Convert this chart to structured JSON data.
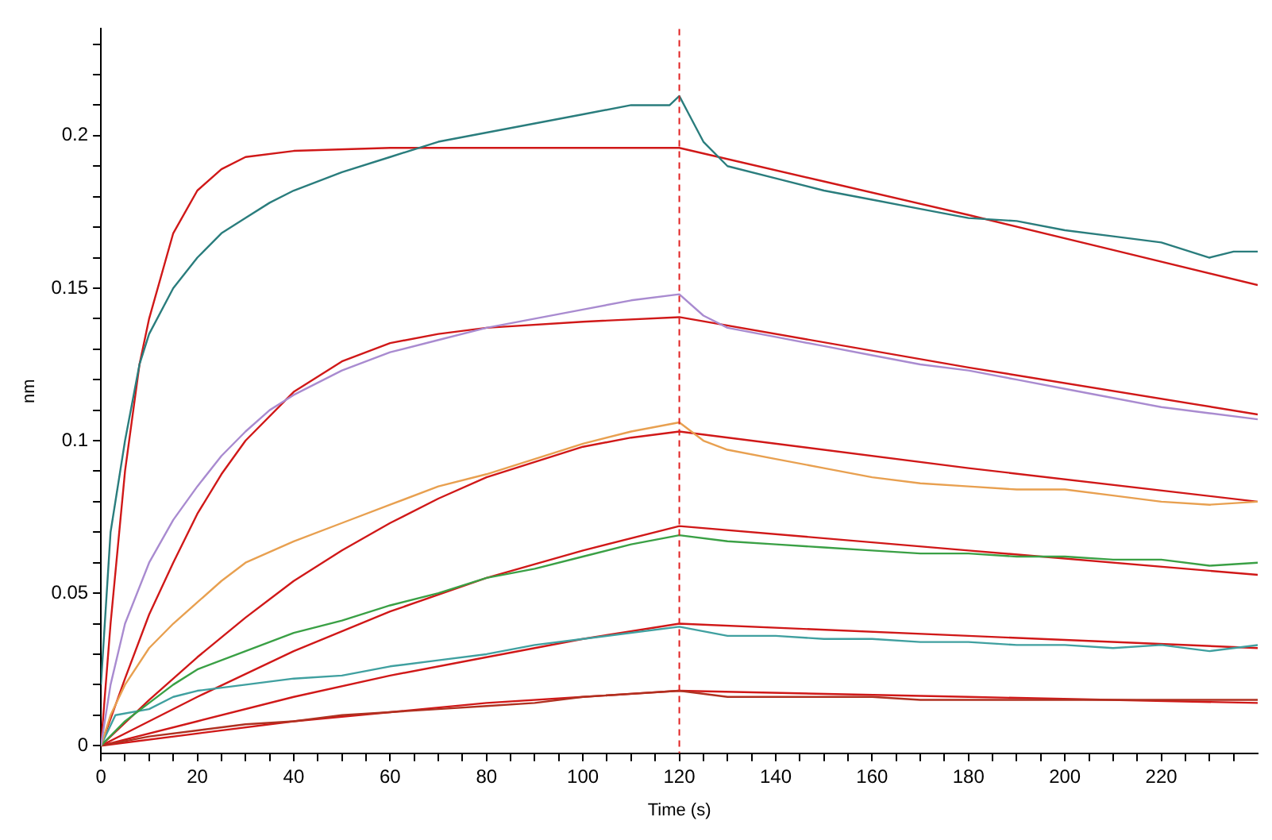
{
  "chart_data": {
    "type": "line",
    "xlabel": "Time (s)",
    "ylabel": "nm",
    "xlim": [
      0,
      240
    ],
    "ylim": [
      -0.0025,
      0.235
    ],
    "xticks": [
      0,
      {
        "value": 5,
        "label": null
      },
      {
        "value": 10,
        "label": null
      },
      {
        "value": 15,
        "label": null
      },
      20,
      {
        "value": 25,
        "label": null
      },
      {
        "value": 30,
        "label": null
      },
      {
        "value": 35,
        "label": null
      },
      40,
      {
        "value": 45,
        "label": null
      },
      {
        "value": 50,
        "label": null
      },
      {
        "value": 55,
        "label": null
      },
      60,
      {
        "value": 65,
        "label": null
      },
      {
        "value": 70,
        "label": null
      },
      {
        "value": 75,
        "label": null
      },
      80,
      {
        "value": 85,
        "label": null
      },
      {
        "value": 90,
        "label": null
      },
      {
        "value": 95,
        "label": null
      },
      100,
      {
        "value": 105,
        "label": null
      },
      {
        "value": 110,
        "label": null
      },
      {
        "value": 115,
        "label": null
      },
      120,
      {
        "value": 125,
        "label": null
      },
      {
        "value": 130,
        "label": null
      },
      {
        "value": 135,
        "label": null
      },
      140,
      {
        "value": 145,
        "label": null
      },
      {
        "value": 150,
        "label": null
      },
      {
        "value": 155,
        "label": null
      },
      160,
      {
        "value": 165,
        "label": null
      },
      {
        "value": 170,
        "label": null
      },
      {
        "value": 175,
        "label": null
      },
      180,
      {
        "value": 185,
        "label": null
      },
      {
        "value": 190,
        "label": null
      },
      {
        "value": 195,
        "label": null
      },
      200,
      {
        "value": 205,
        "label": null
      },
      {
        "value": 210,
        "label": null
      },
      {
        "value": 215,
        "label": null
      },
      220,
      {
        "value": 225,
        "label": null
      },
      {
        "value": 230,
        "label": null
      },
      {
        "value": 235,
        "label": null
      }
    ],
    "yticks": [
      0,
      {
        "value": 0.01,
        "label": null
      },
      {
        "value": 0.02,
        "label": null
      },
      {
        "value": 0.03,
        "label": null
      },
      {
        "value": 0.04,
        "label": null
      },
      0.05,
      {
        "value": 0.06,
        "label": null
      },
      {
        "value": 0.07,
        "label": null
      },
      {
        "value": 0.08,
        "label": null
      },
      {
        "value": 0.09,
        "label": null
      },
      0.1,
      {
        "value": 0.11,
        "label": null
      },
      {
        "value": 0.12,
        "label": null
      },
      {
        "value": 0.13,
        "label": null
      },
      {
        "value": 0.14,
        "label": null
      },
      0.15,
      {
        "value": 0.16,
        "label": null
      },
      {
        "value": 0.17,
        "label": null
      },
      {
        "value": 0.18,
        "label": null
      },
      {
        "value": 0.19,
        "label": null
      },
      0.2,
      {
        "value": 0.21,
        "label": null
      },
      {
        "value": 0.22,
        "label": null
      },
      {
        "value": 0.23,
        "label": null
      }
    ],
    "grid": false,
    "legend": false,
    "marker": "none",
    "line_style": "solid",
    "ref_lines": [
      {
        "axis": "x",
        "value": 120,
        "color": "#e02020",
        "line_style": "dashed"
      }
    ],
    "series": [
      {
        "color": "#2a7d7d",
        "x": [
          0,
          2,
          5,
          8,
          10,
          15,
          20,
          25,
          30,
          35,
          40,
          50,
          60,
          70,
          80,
          90,
          100,
          110,
          118,
          120,
          122,
          125,
          130,
          140,
          150,
          160,
          170,
          180,
          190,
          200,
          210,
          220,
          230,
          235,
          240
        ],
        "values": [
          0.02,
          0.07,
          0.1,
          0.125,
          0.135,
          0.15,
          0.16,
          0.168,
          0.173,
          0.178,
          0.182,
          0.188,
          0.193,
          0.198,
          0.201,
          0.204,
          0.207,
          0.21,
          0.21,
          0.213,
          0.207,
          0.198,
          0.19,
          0.186,
          0.182,
          0.179,
          0.176,
          0.173,
          0.172,
          0.169,
          0.167,
          0.165,
          0.16,
          0.162,
          0.162
        ]
      },
      {
        "color": "#a98bd0",
        "x": [
          0,
          2,
          5,
          10,
          15,
          20,
          25,
          30,
          35,
          40,
          50,
          60,
          70,
          80,
          90,
          100,
          110,
          120,
          125,
          130,
          140,
          150,
          160,
          170,
          180,
          190,
          200,
          210,
          220,
          230,
          240
        ],
        "values": [
          0,
          0.02,
          0.04,
          0.06,
          0.074,
          0.085,
          0.095,
          0.103,
          0.11,
          0.115,
          0.123,
          0.129,
          0.133,
          0.137,
          0.14,
          0.143,
          0.146,
          0.148,
          0.141,
          0.137,
          0.134,
          0.131,
          0.128,
          0.125,
          0.123,
          0.12,
          0.117,
          0.114,
          0.111,
          0.109,
          0.107
        ]
      },
      {
        "color": "#e8a050",
        "x": [
          0,
          2,
          5,
          10,
          15,
          20,
          25,
          30,
          40,
          50,
          60,
          70,
          80,
          90,
          100,
          110,
          120,
          125,
          130,
          140,
          150,
          160,
          170,
          180,
          190,
          200,
          210,
          220,
          230,
          240
        ],
        "values": [
          0,
          0.01,
          0.02,
          0.032,
          0.04,
          0.047,
          0.054,
          0.06,
          0.067,
          0.073,
          0.079,
          0.085,
          0.089,
          0.094,
          0.099,
          0.103,
          0.106,
          0.1,
          0.097,
          0.094,
          0.091,
          0.088,
          0.086,
          0.085,
          0.084,
          0.084,
          0.082,
          0.08,
          0.079,
          0.08
        ]
      },
      {
        "color": "#3aa045",
        "x": [
          0,
          5,
          10,
          15,
          20,
          30,
          40,
          50,
          60,
          70,
          80,
          90,
          100,
          110,
          120,
          130,
          140,
          150,
          160,
          170,
          180,
          190,
          200,
          210,
          220,
          230,
          240
        ],
        "values": [
          0,
          0.008,
          0.014,
          0.02,
          0.025,
          0.031,
          0.037,
          0.041,
          0.046,
          0.05,
          0.055,
          0.058,
          0.062,
          0.066,
          0.069,
          0.067,
          0.066,
          0.065,
          0.064,
          0.063,
          0.063,
          0.062,
          0.062,
          0.061,
          0.061,
          0.059,
          0.06
        ]
      },
      {
        "color": "#40a0a0",
        "x": [
          0,
          3,
          10,
          15,
          20,
          30,
          40,
          50,
          60,
          70,
          80,
          90,
          100,
          110,
          120,
          130,
          140,
          150,
          160,
          170,
          180,
          190,
          200,
          210,
          220,
          230,
          240
        ],
        "values": [
          0,
          0.01,
          0.012,
          0.016,
          0.018,
          0.02,
          0.022,
          0.023,
          0.026,
          0.028,
          0.03,
          0.033,
          0.035,
          0.037,
          0.039,
          0.036,
          0.036,
          0.035,
          0.035,
          0.034,
          0.034,
          0.033,
          0.033,
          0.032,
          0.033,
          0.031,
          0.033
        ]
      },
      {
        "color": "#b03020",
        "x": [
          0,
          10,
          20,
          30,
          40,
          50,
          60,
          70,
          80,
          90,
          100,
          110,
          120,
          130,
          140,
          150,
          160,
          170,
          180,
          190,
          200,
          210,
          220,
          230,
          240
        ],
        "values": [
          0,
          0.003,
          0.005,
          0.007,
          0.008,
          0.01,
          0.011,
          0.012,
          0.013,
          0.014,
          0.016,
          0.017,
          0.018,
          0.016,
          0.016,
          0.016,
          0.016,
          0.015,
          0.015,
          0.015,
          0.015,
          0.015,
          0.015,
          0.015,
          0.015
        ]
      },
      {
        "color": "#d01818",
        "x": [
          0,
          2,
          5,
          8,
          10,
          15,
          20,
          25,
          30,
          40,
          60,
          120,
          150,
          180,
          210,
          240
        ],
        "values": [
          0,
          0.04,
          0.09,
          0.125,
          0.14,
          0.168,
          0.182,
          0.189,
          0.193,
          0.195,
          0.196,
          0.196,
          0.185,
          0.174,
          0.1625,
          0.151
        ]
      },
      {
        "color": "#d01818",
        "x": [
          0,
          5,
          10,
          15,
          20,
          25,
          30,
          40,
          50,
          60,
          70,
          80,
          100,
          120,
          180,
          240
        ],
        "values": [
          0,
          0.022,
          0.043,
          0.06,
          0.076,
          0.089,
          0.1,
          0.116,
          0.126,
          0.132,
          0.135,
          0.137,
          0.139,
          0.1405,
          0.124,
          0.1086
        ]
      },
      {
        "color": "#d01818",
        "x": [
          0,
          10,
          20,
          30,
          40,
          50,
          60,
          70,
          80,
          90,
          100,
          110,
          120,
          180,
          240
        ],
        "values": [
          0,
          0.015,
          0.029,
          0.042,
          0.054,
          0.064,
          0.073,
          0.081,
          0.088,
          0.093,
          0.098,
          0.101,
          0.103,
          0.091,
          0.08
        ]
      },
      {
        "color": "#d01818",
        "x": [
          0,
          20,
          40,
          60,
          80,
          100,
          120,
          180,
          240
        ],
        "values": [
          0,
          0.016,
          0.031,
          0.044,
          0.055,
          0.064,
          0.072,
          0.064,
          0.056
        ]
      },
      {
        "color": "#d01818",
        "x": [
          0,
          20,
          40,
          60,
          80,
          100,
          120,
          180,
          240
        ],
        "values": [
          0,
          0.008,
          0.016,
          0.023,
          0.029,
          0.035,
          0.04,
          0.036,
          0.032
        ]
      },
      {
        "color": "#d01818",
        "x": [
          0,
          20,
          40,
          60,
          80,
          100,
          120,
          180,
          240
        ],
        "values": [
          0,
          0.004,
          0.008,
          0.011,
          0.014,
          0.016,
          0.018,
          0.016,
          0.014
        ]
      }
    ]
  }
}
